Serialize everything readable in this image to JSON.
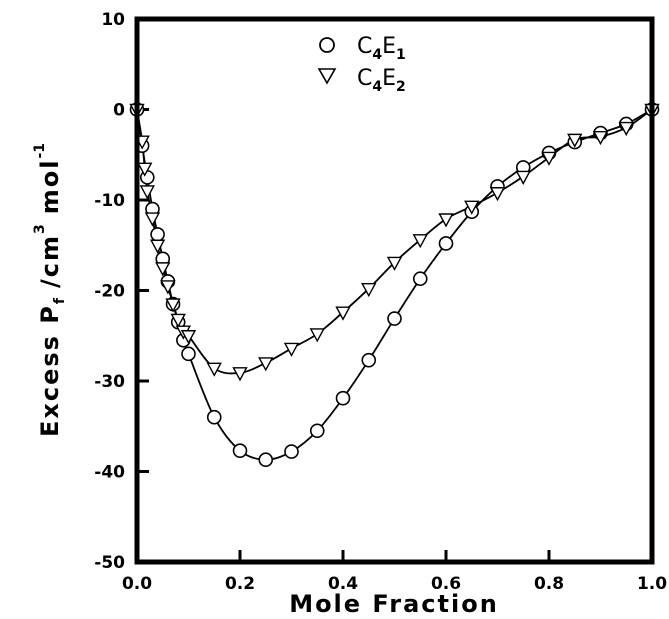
{
  "chart_data": {
    "type": "scatter",
    "xlabel": "Mole Fraction",
    "ylabel": {
      "main": "Excess P",
      "sub": "f",
      "unit": "/cm",
      "unit_sup": "3",
      "unit2": "mol",
      "unit2_sup": "-1"
    },
    "xlim": [
      0.0,
      1.0
    ],
    "ylim": [
      -50,
      10
    ],
    "x_ticks": [
      0.0,
      0.2,
      0.4,
      0.6,
      0.8,
      1.0
    ],
    "x_tick_labels": [
      "0.0",
      "0.2",
      "0.4",
      "0.6",
      "0.8",
      "1.0"
    ],
    "y_ticks": [
      -50,
      -40,
      -30,
      -20,
      -10,
      0,
      10
    ],
    "y_tick_labels": [
      "-50",
      "-40",
      "-30",
      "-20",
      "-10",
      "0",
      "10"
    ],
    "grid": false,
    "legend_position": "top-center",
    "series": [
      {
        "name": "C4E1",
        "label_main": "C",
        "label_sub1": "4",
        "label_mid": "E",
        "label_sub2": "1",
        "marker": "circle",
        "x": [
          0.0,
          0.01,
          0.02,
          0.03,
          0.04,
          0.05,
          0.06,
          0.07,
          0.08,
          0.09,
          0.1,
          0.15,
          0.2,
          0.25,
          0.3,
          0.35,
          0.4,
          0.45,
          0.5,
          0.55,
          0.6,
          0.65,
          0.7,
          0.75,
          0.8,
          0.85,
          0.9,
          0.95,
          1.0
        ],
        "y": [
          0.0,
          -4.0,
          -7.5,
          -11.0,
          -13.8,
          -16.5,
          -19.0,
          -21.5,
          -23.5,
          -25.5,
          -27.0,
          -34.0,
          -37.7,
          -38.7,
          -37.8,
          -35.5,
          -31.9,
          -27.7,
          -23.1,
          -18.7,
          -14.8,
          -11.3,
          -8.5,
          -6.4,
          -4.8,
          -3.6,
          -2.6,
          -1.6,
          0.0
        ]
      },
      {
        "name": "C4E2",
        "label_main": "C",
        "label_sub1": "4",
        "label_mid": "E",
        "label_sub2": "2",
        "marker": "triangle-down",
        "x": [
          0.0,
          0.01,
          0.015,
          0.02,
          0.03,
          0.04,
          0.05,
          0.06,
          0.07,
          0.08,
          0.09,
          0.1,
          0.15,
          0.2,
          0.25,
          0.3,
          0.35,
          0.4,
          0.45,
          0.5,
          0.55,
          0.6,
          0.65,
          0.7,
          0.75,
          0.8,
          0.85,
          0.9,
          0.95,
          1.0
        ],
        "y": [
          0.0,
          -3.5,
          -6.5,
          -9.0,
          -12.0,
          -15.0,
          -17.5,
          -19.5,
          -21.5,
          -23.2,
          -24.5,
          -25.0,
          -28.6,
          -29.1,
          -28.0,
          -26.4,
          -24.8,
          -22.4,
          -19.8,
          -16.9,
          -14.4,
          -12.1,
          -10.7,
          -9.2,
          -7.4,
          -5.3,
          -3.3,
          -3.0,
          -2.0,
          0.0
        ]
      }
    ]
  }
}
